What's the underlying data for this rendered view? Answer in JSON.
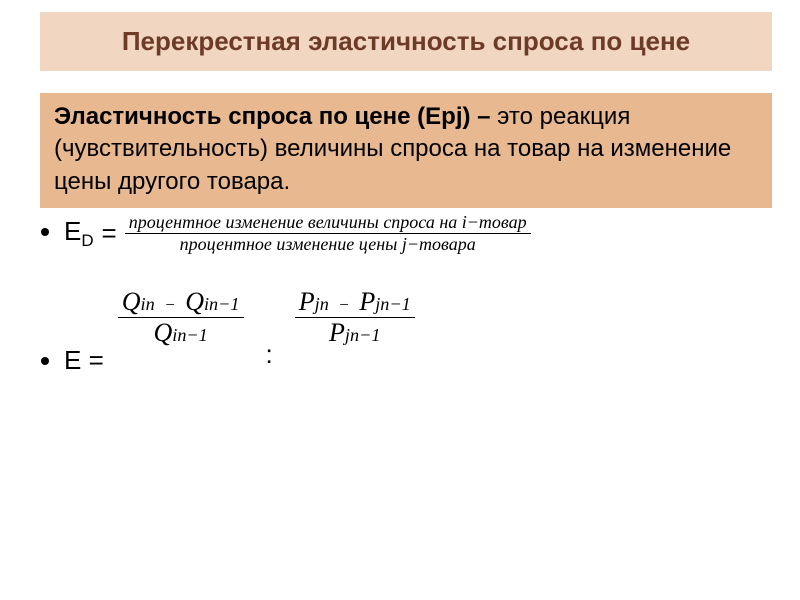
{
  "colors": {
    "title_bg": "#f1d6c2",
    "title_fg": "#6e3b28",
    "definition_bg": "#e8b891",
    "text": "#000000",
    "background": "#ffffff"
  },
  "title": "Перекрестная эластичность спроса по цене",
  "definition": {
    "term": "Эластичность спроса по цене (Epj) –",
    "body": "это реакция (чувствительность) величины спроса на товар  на изменение цены другого товара."
  },
  "bullet1": {
    "lhs": "E",
    "lhs_sub": "D",
    "equals": "=",
    "numerator": "процентное изменение величины спроса  на  i−товар",
    "denominator": "процентное изменение  цены  j−товара"
  },
  "bullet2": {
    "lhs": "E =",
    "fracA": {
      "num_left": "Q",
      "num_left_sub": "in",
      "num_right": "Q",
      "num_right_sub": "in−1",
      "den": "Q",
      "den_sub": "in−1"
    },
    "colon": ":",
    "fracB": {
      "num_left": "P",
      "num_left_sub": "jn",
      "num_right": "P",
      "num_right_sub": "jn−1",
      "den": "P",
      "den_sub": "jn−1"
    }
  }
}
